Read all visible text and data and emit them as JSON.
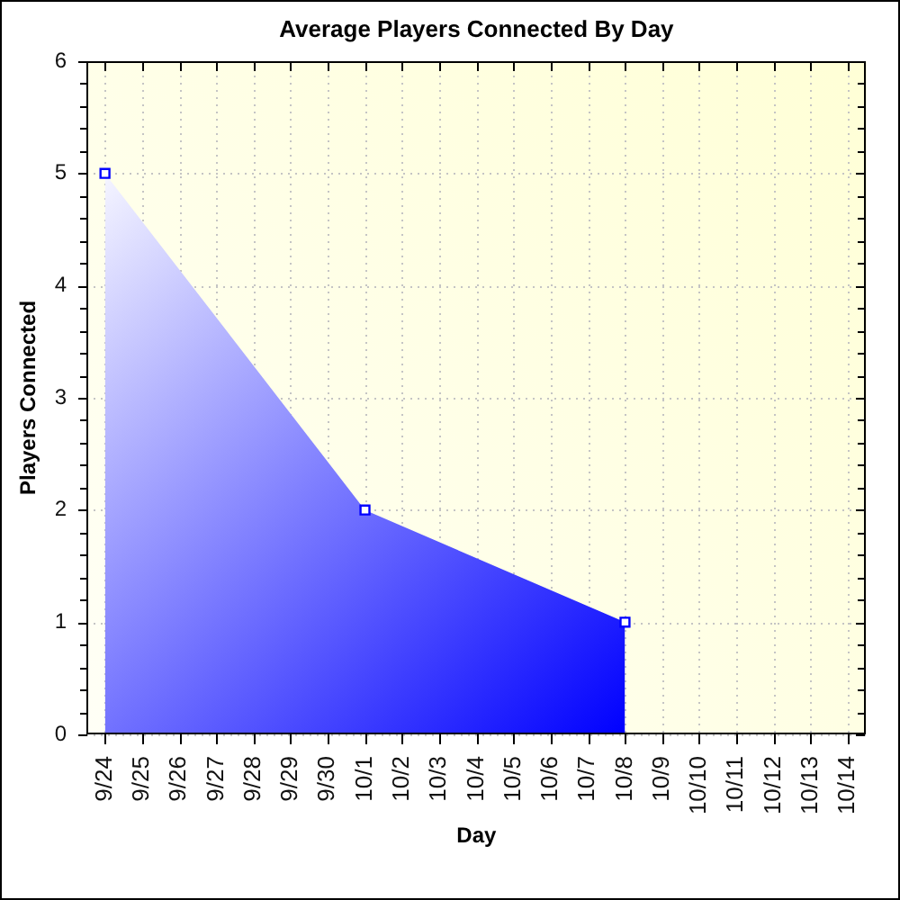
{
  "chart_data": {
    "type": "area",
    "title": "Average Players Connected By Day",
    "xlabel": "Day",
    "ylabel": "Players Connected",
    "categories": [
      "9/24",
      "9/25",
      "9/26",
      "9/27",
      "9/28",
      "9/29",
      "9/30",
      "10/1",
      "10/2",
      "10/3",
      "10/4",
      "10/5",
      "10/6",
      "10/7",
      "10/8",
      "10/9",
      "10/10",
      "10/11",
      "10/12",
      "10/13",
      "10/14"
    ],
    "series": [
      {
        "color": "#0000ff",
        "x": [
          "9/24",
          "10/1",
          "10/8"
        ],
        "values": [
          5,
          2,
          1
        ]
      }
    ],
    "ylim": [
      0,
      6
    ],
    "yticks": [
      0,
      {
        "value": 0.2,
        "label": null
      },
      {
        "value": 0.4,
        "label": null
      },
      {
        "value": 0.6,
        "label": null
      },
      {
        "value": 0.8,
        "label": null
      },
      1,
      {
        "value": 1.2,
        "label": null
      },
      {
        "value": 1.4,
        "label": null
      },
      {
        "value": 1.6,
        "label": null
      },
      {
        "value": 1.8,
        "label": null
      },
      2,
      {
        "value": 2.2,
        "label": null
      },
      {
        "value": 2.4,
        "label": null
      },
      {
        "value": 2.6,
        "label": null
      },
      {
        "value": 2.8,
        "label": null
      },
      3,
      {
        "value": 3.2,
        "label": null
      },
      {
        "value": 3.4,
        "label": null
      },
      {
        "value": 3.6,
        "label": null
      },
      {
        "value": 3.8,
        "label": null
      },
      4,
      {
        "value": 4.2,
        "label": null
      },
      {
        "value": 4.4,
        "label": null
      },
      {
        "value": 4.6,
        "label": null
      },
      {
        "value": 4.8,
        "label": null
      },
      5,
      {
        "value": 5.2,
        "label": null
      },
      {
        "value": 5.4,
        "label": null
      },
      {
        "value": 5.6,
        "label": null
      },
      {
        "value": 5.8,
        "label": null
      },
      6
    ],
    "grid": true,
    "marker": "square"
  }
}
